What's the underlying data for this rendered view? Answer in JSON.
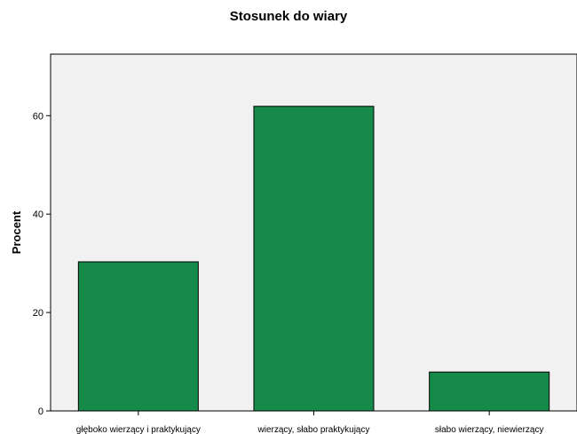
{
  "chart_data": {
    "type": "bar",
    "title": "Stosunek do wiary",
    "xlabel": "",
    "ylabel": "Procent",
    "categories": [
      "głęboko wierzący i praktykujący",
      "wierzący, słabo praktykujący",
      "słabo wierzący, niewierzący"
    ],
    "values": [
      30.3,
      61.9,
      7.9
    ],
    "ylim": [
      0,
      72.5
    ],
    "yticks": [
      0,
      20,
      40,
      60
    ],
    "grid": false,
    "legend": "none",
    "colors": {
      "bar": "#158a49",
      "plot_bg": "#f1f1f1",
      "bar_stroke": "#000000"
    }
  }
}
